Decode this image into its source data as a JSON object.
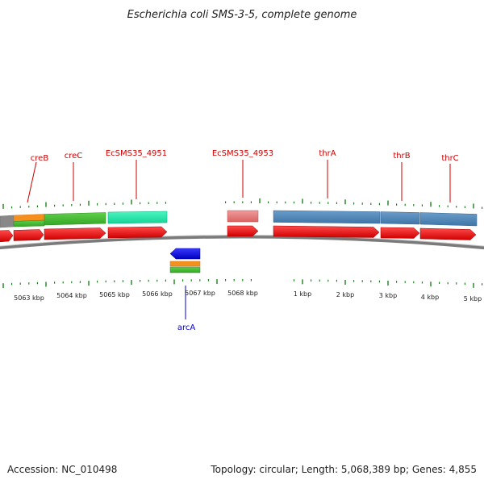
{
  "title": "Escherichia coli SMS-3-5, complete genome",
  "footer": {
    "accession": "Accession: NC_010498",
    "summary": "Topology: circular; Length: 5,068,389 bp; Genes: 4,855"
  },
  "ticks": [
    {
      "label": "5063 kbp"
    },
    {
      "label": "5064 kbp"
    },
    {
      "label": "5065 kbp"
    },
    {
      "label": "5066 kbp"
    },
    {
      "label": "5067 kbp"
    },
    {
      "label": "5068 kbp"
    },
    {
      "label": "1 kbp"
    },
    {
      "label": "2 kbp"
    },
    {
      "label": "3 kbp"
    },
    {
      "label": "4 kbp"
    },
    {
      "label": "5 kbp"
    }
  ],
  "gene_labels": [
    {
      "text": "creB",
      "strand": "forward"
    },
    {
      "text": "creC",
      "strand": "forward"
    },
    {
      "text": "EcSMS35_4951",
      "strand": "forward"
    },
    {
      "text": "EcSMS35_4953",
      "strand": "forward"
    },
    {
      "text": "thrA",
      "strand": "forward"
    },
    {
      "text": "thrB",
      "strand": "forward"
    },
    {
      "text": "thrC",
      "strand": "forward"
    },
    {
      "text": "arcA",
      "strand": "reverse"
    }
  ],
  "colors": {
    "cds_forward": "#e60000",
    "cds_reverse": "#0000e6",
    "backbone": "#888888",
    "tick": "#0a7a0a",
    "label_forward": "#cc0000",
    "label_reverse": "#0000cc",
    "feature_gray": "#888888",
    "feature_orange": "#f5901e",
    "feature_green": "#44bb33",
    "feature_aqua": "#22e8a8",
    "feature_pink": "#e87878",
    "feature_steelblue": "#4d86b8"
  }
}
